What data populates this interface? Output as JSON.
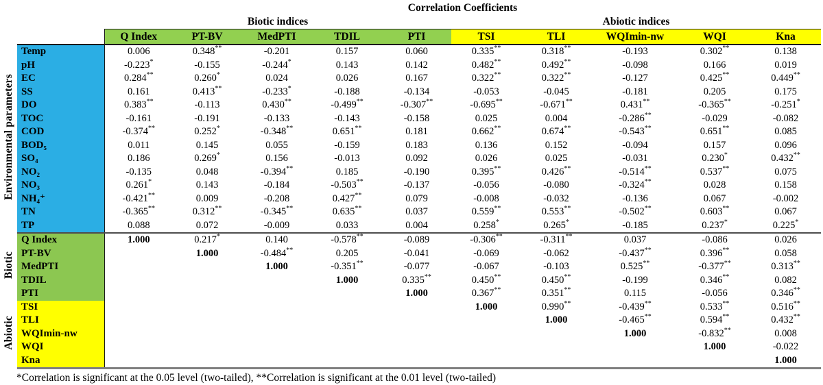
{
  "title": "Correlation Coefficients",
  "footnote": "*Correlation is significant at the 0.05 level (two-tailed), **Correlation is significant at the 0.01 level (two-tailed)",
  "colors": {
    "env_blue": "#2BAEE4",
    "biotic_green_header": "#92D050",
    "biotic_green_rows": "#8CC751",
    "abiotic_yellow": "#FFFF00",
    "header_rule": "#1a1a1a",
    "section_rule": "#4d4d4d",
    "bottom_rule": "#7f7f7f"
  },
  "chart_data": {
    "type": "table",
    "title": "Correlation Coefficients",
    "column_groups": [
      {
        "label": "Biotic indices",
        "color": "#92D050",
        "columns": [
          "Q Index",
          "PT-BV",
          "MedPTI",
          "TDIL",
          "PTI"
        ]
      },
      {
        "label": "Abiotic indices",
        "color": "#FFFF00",
        "columns": [
          "TSI",
          "TLI",
          "WQImin-nw",
          "WQI",
          "Kna"
        ]
      }
    ],
    "row_groups": [
      {
        "label": "Environmental parameters",
        "color": "#2BAEE4",
        "rows": [
          {
            "label": "Temp",
            "values": [
              "0.006",
              "0.348**",
              "-0.201",
              "0.157",
              "0.060",
              "0.335**",
              "0.318**",
              "-0.193",
              "0.302**",
              "0.138"
            ]
          },
          {
            "label": "pH",
            "values": [
              "-0.223*",
              "-0.155",
              "-0.244*",
              "0.143",
              "0.142",
              "0.482**",
              "0.492**",
              "-0.098",
              "0.166",
              "0.019"
            ]
          },
          {
            "label": "EC",
            "values": [
              "0.284**",
              "0.260*",
              "0.024",
              "0.026",
              "0.167",
              "0.322**",
              "0.322**",
              "-0.127",
              "0.425**",
              "0.449**"
            ]
          },
          {
            "label": "SS",
            "values": [
              "0.161",
              "0.413**",
              "-0.233*",
              "-0.188",
              "-0.134",
              "-0.053",
              "-0.045",
              "-0.181",
              "0.205",
              "0.175"
            ]
          },
          {
            "label": "DO",
            "values": [
              "0.383**",
              "-0.113",
              "0.430**",
              "-0.499**",
              "-0.307**",
              "-0.695**",
              "-0.671**",
              "0.431**",
              "-0.365**",
              "-0.251*"
            ]
          },
          {
            "label": "TOC",
            "values": [
              "-0.161",
              "-0.191",
              "-0.133",
              "-0.143",
              "-0.158",
              "0.025",
              "0.004",
              "-0.286**",
              "-0.029",
              "-0.082"
            ]
          },
          {
            "label": "COD",
            "values": [
              "-0.374**",
              "0.252*",
              "-0.348**",
              "0.651**",
              "0.181",
              "0.662**",
              "0.674**",
              "-0.543**",
              "0.651**",
              "0.085"
            ]
          },
          {
            "label": "BOD₅",
            "values": [
              "0.011",
              "0.145",
              "0.055",
              "-0.159",
              "0.183",
              "0.136",
              "0.152",
              "-0.094",
              "0.157",
              "0.096"
            ]
          },
          {
            "label": "SO₄",
            "values": [
              "0.186",
              "0.269*",
              "0.156",
              "-0.013",
              "0.092",
              "0.026",
              "0.025",
              "-0.031",
              "0.230*",
              "0.432**"
            ]
          },
          {
            "label": "NO₂",
            "values": [
              "-0.135",
              "0.048",
              "-0.394**",
              "0.185",
              "-0.190",
              "0.395**",
              "0.426**",
              "-0.514**",
              "0.537**",
              "0.075"
            ]
          },
          {
            "label": "NO₃",
            "values": [
              "0.261*",
              "0.143",
              "-0.184",
              "-0.503**",
              "-0.137",
              "-0.056",
              "-0.080",
              "-0.324**",
              "0.028",
              "0.158"
            ]
          },
          {
            "label": "NH₄⁺",
            "values": [
              "-0.421**",
              "0.009",
              "-0.208",
              "0.427**",
              "0.079",
              "-0.008",
              "-0.032",
              "-0.136",
              "0.067",
              "-0.002"
            ]
          },
          {
            "label": "TN",
            "values": [
              "-0.365**",
              "0.312**",
              "-0.345**",
              "0.635**",
              "0.037",
              "0.559**",
              "0.553**",
              "-0.502**",
              "0.603**",
              "0.067"
            ]
          },
          {
            "label": "TP",
            "values": [
              "0.088",
              "0.072",
              "-0.009",
              "0.033",
              "0.004",
              "0.258*",
              "0.265*",
              "-0.185",
              "0.237*",
              "0.225*"
            ]
          }
        ]
      },
      {
        "label": "Biotic",
        "color": "#8CC751",
        "rows": [
          {
            "label": "Q Index",
            "values": [
              "1.000",
              "0.217*",
              "0.140",
              "-0.578**",
              "-0.089",
              "-0.306**",
              "-0.311**",
              "0.037",
              "-0.086",
              "0.026"
            ]
          },
          {
            "label": "PT-BV",
            "values": [
              "",
              "1.000",
              "-0.484**",
              "0.205",
              "-0.041",
              "-0.069",
              "-0.062",
              "-0.437**",
              "0.396**",
              "0.058"
            ]
          },
          {
            "label": "MedPTI",
            "values": [
              "",
              "",
              "1.000",
              "-0.351**",
              "-0.077",
              "-0.067",
              "-0.103",
              "0.525**",
              "-0.377**",
              "0.313**"
            ]
          },
          {
            "label": "TDIL",
            "values": [
              "",
              "",
              "",
              "1.000",
              "0.335**",
              "0.450**",
              "0.450**",
              "-0.199",
              "0.346**",
              "0.082"
            ]
          },
          {
            "label": "PTI",
            "values": [
              "",
              "",
              "",
              "",
              "1.000",
              "0.367**",
              "0.351**",
              "0.115",
              "-0.056",
              "0.346**"
            ]
          }
        ]
      },
      {
        "label": "Abiotic",
        "color": "#FFFF00",
        "rows": [
          {
            "label": "TSI",
            "values": [
              "",
              "",
              "",
              "",
              "",
              "1.000",
              "0.990**",
              "-0.439**",
              "0.533**",
              "0.516**"
            ]
          },
          {
            "label": "TLI",
            "values": [
              "",
              "",
              "",
              "",
              "",
              "",
              "1.000",
              "-0.465**",
              "0.594**",
              "0.432**"
            ]
          },
          {
            "label": "WQImin-nw",
            "values": [
              "",
              "",
              "",
              "",
              "",
              "",
              "",
              "1.000",
              "-0.832**",
              "0.008"
            ]
          },
          {
            "label": "WQI",
            "values": [
              "",
              "",
              "",
              "",
              "",
              "",
              "",
              "",
              "1.000",
              "-0.022"
            ]
          },
          {
            "label": "Kna",
            "values": [
              "",
              "",
              "",
              "",
              "",
              "",
              "",
              "",
              "",
              "1.000"
            ]
          }
        ]
      }
    ]
  }
}
